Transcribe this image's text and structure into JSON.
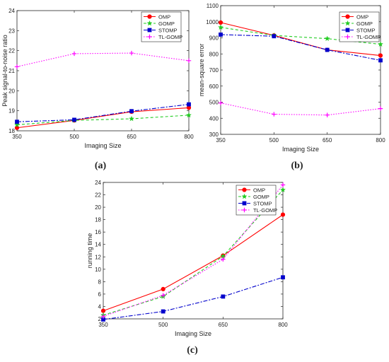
{
  "chart_data": [
    {
      "panel_label": "(a)",
      "type": "line",
      "x": [
        350,
        500,
        650,
        800
      ],
      "xlabel": "Imaging Size",
      "ylabel": "Peak signal-to-noise ratio",
      "xlim": [
        350,
        800
      ],
      "ylim": [
        18,
        24
      ],
      "xticks": [
        350,
        500,
        650,
        800
      ],
      "yticks": [
        18,
        19,
        20,
        21,
        22,
        23,
        24
      ],
      "legend_position": "top-right",
      "grid": false,
      "series": [
        {
          "name": "OMP",
          "values": [
            18.15,
            18.52,
            18.95,
            19.15
          ],
          "color": "#ff0000",
          "dash": "",
          "marker": "circle"
        },
        {
          "name": "GOMP",
          "values": [
            18.3,
            18.52,
            18.6,
            18.78
          ],
          "color": "#22cc22",
          "dash": "4 3",
          "marker": "star"
        },
        {
          "name": "STOMP",
          "values": [
            18.45,
            18.55,
            18.98,
            19.32
          ],
          "color": "#0000cc",
          "dash": "6 2 2 2",
          "marker": "square"
        },
        {
          "name": "TL-GOMP",
          "values": [
            21.2,
            21.85,
            21.88,
            21.5
          ],
          "color": "#ff00ff",
          "dash": "1.5 2",
          "marker": "plus"
        }
      ]
    },
    {
      "panel_label": "(b)",
      "type": "line",
      "x": [
        350,
        500,
        650,
        800
      ],
      "xlabel": "Imaging Size",
      "ylabel": "mean-square error",
      "xlim": [
        350,
        800
      ],
      "ylim": [
        300,
        1100
      ],
      "xticks": [
        350,
        500,
        650,
        800
      ],
      "yticks": [
        300,
        400,
        500,
        600,
        700,
        800,
        900,
        1000,
        1100
      ],
      "legend_position": "top-right",
      "grid": false,
      "series": [
        {
          "name": "OMP",
          "values": [
            995,
            915,
            825,
            790
          ],
          "color": "#ff0000",
          "dash": "",
          "marker": "circle"
        },
        {
          "name": "GOMP",
          "values": [
            965,
            915,
            895,
            860
          ],
          "color": "#22cc22",
          "dash": "4 3",
          "marker": "star"
        },
        {
          "name": "STOMP",
          "values": [
            920,
            910,
            825,
            760
          ],
          "color": "#0000cc",
          "dash": "6 2 2 2",
          "marker": "square"
        },
        {
          "name": "TL-GOMP",
          "values": [
            495,
            425,
            420,
            460
          ],
          "color": "#ff00ff",
          "dash": "1.5 2",
          "marker": "plus"
        }
      ]
    },
    {
      "panel_label": "(c)",
      "type": "line",
      "x": [
        350,
        500,
        650,
        800
      ],
      "xlabel": "Imaging Size",
      "ylabel": "running time",
      "xlim": [
        350,
        800
      ],
      "ylim": [
        2,
        24
      ],
      "xticks": [
        350,
        500,
        650,
        800
      ],
      "yticks": [
        2,
        4,
        6,
        8,
        10,
        12,
        14,
        16,
        18,
        20,
        22,
        24
      ],
      "legend_position": "top-left",
      "grid": false,
      "series": [
        {
          "name": "OMP",
          "values": [
            3.3,
            6.8,
            12.2,
            18.8
          ],
          "color": "#ff0000",
          "dash": "",
          "marker": "circle"
        },
        {
          "name": "GOMP",
          "values": [
            2.6,
            5.6,
            12.1,
            22.8
          ],
          "color": "#22cc22",
          "dash": "4 3",
          "marker": "star"
        },
        {
          "name": "STOMP",
          "values": [
            1.9,
            3.2,
            5.6,
            8.7
          ],
          "color": "#0000cc",
          "dash": "6 2 2 2",
          "marker": "square"
        },
        {
          "name": "TL-GOMP",
          "values": [
            2.4,
            5.8,
            11.6,
            23.6
          ],
          "color": "#ff00ff",
          "dash": "1.5 2",
          "marker": "plus"
        }
      ]
    }
  ]
}
